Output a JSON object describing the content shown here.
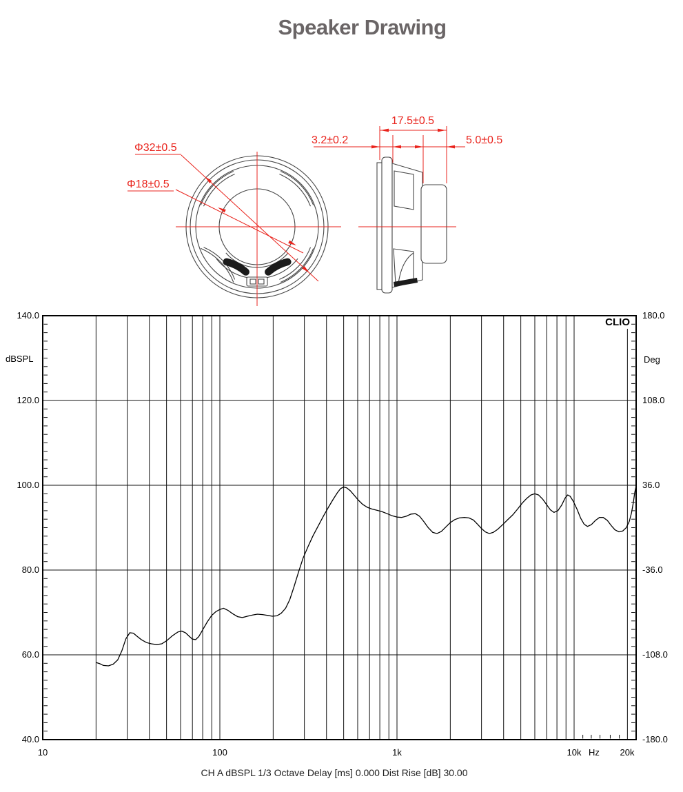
{
  "page_title": "Speaker Drawing",
  "colors": {
    "dimension_red": "#e9231c",
    "drawing_gray": "#474747",
    "curve_black": "#000000",
    "title_gray": "#6a6566"
  },
  "drawing": {
    "front_view": {
      "dim_outer": "Φ32±0.5",
      "dim_inner": "Φ18±0.5"
    },
    "side_view": {
      "dim_flange": "3.2±0.2",
      "dim_depth": "17.5±0.5",
      "dim_magnet": "5.0±0.5"
    }
  },
  "chart": {
    "brand": "CLIO",
    "y_left_unit": "dBSPL",
    "y_right_unit": "Deg",
    "x_unit": "Hz",
    "y_left_ticks": [
      "140.0",
      "120.0",
      "100.0",
      "80.0",
      "60.0",
      "40.0"
    ],
    "y_right_ticks": [
      "180.0",
      "108.0",
      "36.0",
      "-36.0",
      "-108.0",
      "-180.0"
    ],
    "x_tick_labels": [
      "10",
      "100",
      "1k",
      "10k",
      "20k"
    ],
    "caption": "CH A  dBSPL  1/3 Octave  Delay [ms] 0.000   Dist Rise [dB] 30.00"
  },
  "chart_data": {
    "type": "line",
    "title": "CLIO frequency response",
    "xlabel": "Hz",
    "ylabel": "dBSPL",
    "ylabel_right": "Deg",
    "x_scale": "log",
    "xlim": [
      10,
      22400
    ],
    "ylim": [
      40,
      140
    ],
    "ylim_right": [
      -180,
      180
    ],
    "grid": true,
    "x_gridlines": [
      20,
      30,
      40,
      50,
      60,
      70,
      80,
      90,
      100,
      200,
      300,
      400,
      500,
      600,
      700,
      800,
      900,
      1000,
      2000,
      3000,
      4000,
      5000,
      6000,
      7000,
      8000,
      9000,
      10000,
      20000
    ],
    "y_gridlines": [
      120,
      100,
      80,
      60
    ],
    "x_minor_ticks": [
      11200,
      12500,
      14000,
      16000,
      18000
    ],
    "y_minor_tick_step": 2,
    "series": [
      {
        "name": "CH A dBSPL",
        "points": [
          [
            20,
            58.2
          ],
          [
            21,
            57.9
          ],
          [
            22,
            57.5
          ],
          [
            23.5,
            57.4
          ],
          [
            25,
            57.8
          ],
          [
            26.5,
            58.8
          ],
          [
            28,
            61
          ],
          [
            29.5,
            63.8
          ],
          [
            31,
            65.2
          ],
          [
            32.5,
            65.1
          ],
          [
            34,
            64.4
          ],
          [
            36,
            63.6
          ],
          [
            38.5,
            62.9
          ],
          [
            41,
            62.6
          ],
          [
            44,
            62.4
          ],
          [
            47,
            62.6
          ],
          [
            50,
            63.3
          ],
          [
            54,
            64.5
          ],
          [
            58,
            65.4
          ],
          [
            61,
            65.6
          ],
          [
            64,
            65.2
          ],
          [
            67,
            64.4
          ],
          [
            70,
            63.7
          ],
          [
            73,
            63.6
          ],
          [
            76,
            64.3
          ],
          [
            80,
            65.9
          ],
          [
            85,
            67.8
          ],
          [
            90,
            69.3
          ],
          [
            95,
            70.2
          ],
          [
            100,
            70.7
          ],
          [
            105,
            71
          ],
          [
            111,
            70.5
          ],
          [
            118,
            69.7
          ],
          [
            126,
            69
          ],
          [
            134,
            68.8
          ],
          [
            143,
            69.1
          ],
          [
            153,
            69.4
          ],
          [
            163,
            69.6
          ],
          [
            174,
            69.5
          ],
          [
            186,
            69.3
          ],
          [
            198,
            69.1
          ],
          [
            210,
            69.2
          ],
          [
            222,
            69.8
          ],
          [
            235,
            71
          ],
          [
            248,
            73
          ],
          [
            262,
            76
          ],
          [
            278,
            79.5
          ],
          [
            295,
            82.8
          ],
          [
            315,
            85.6
          ],
          [
            335,
            88
          ],
          [
            360,
            90.5
          ],
          [
            385,
            92.8
          ],
          [
            410,
            94.8
          ],
          [
            435,
            96.6
          ],
          [
            460,
            98.2
          ],
          [
            480,
            99.2
          ],
          [
            500,
            99.6
          ],
          [
            520,
            99.4
          ],
          [
            545,
            98.7
          ],
          [
            575,
            97.6
          ],
          [
            605,
            96.5
          ],
          [
            640,
            95.5
          ],
          [
            680,
            94.8
          ],
          [
            720,
            94.4
          ],
          [
            770,
            94.1
          ],
          [
            820,
            93.8
          ],
          [
            880,
            93.3
          ],
          [
            940,
            92.8
          ],
          [
            1000,
            92.5
          ],
          [
            1060,
            92.4
          ],
          [
            1130,
            92.7
          ],
          [
            1200,
            93.2
          ],
          [
            1270,
            93.3
          ],
          [
            1340,
            92.7
          ],
          [
            1420,
            91.4
          ],
          [
            1500,
            90
          ],
          [
            1590,
            88.9
          ],
          [
            1680,
            88.6
          ],
          [
            1780,
            89.1
          ],
          [
            1890,
            90.2
          ],
          [
            2000,
            91.2
          ],
          [
            2120,
            91.9
          ],
          [
            2250,
            92.3
          ],
          [
            2400,
            92.4
          ],
          [
            2550,
            92.3
          ],
          [
            2700,
            91.8
          ],
          [
            2850,
            90.8
          ],
          [
            3000,
            89.8
          ],
          [
            3150,
            89
          ],
          [
            3320,
            88.6
          ],
          [
            3500,
            88.9
          ],
          [
            3700,
            89.6
          ],
          [
            3950,
            90.7
          ],
          [
            4200,
            91.8
          ],
          [
            4500,
            93
          ],
          [
            4800,
            94.4
          ],
          [
            5100,
            95.8
          ],
          [
            5400,
            96.9
          ],
          [
            5700,
            97.7
          ],
          [
            6000,
            98
          ],
          [
            6300,
            97.7
          ],
          [
            6650,
            96.7
          ],
          [
            7000,
            95.4
          ],
          [
            7350,
            94.2
          ],
          [
            7700,
            93.6
          ],
          [
            8100,
            94
          ],
          [
            8500,
            95.3
          ],
          [
            8900,
            97
          ],
          [
            9200,
            97.7
          ],
          [
            9500,
            97.4
          ],
          [
            9900,
            96.2
          ],
          [
            10400,
            94.3
          ],
          [
            10900,
            92.2
          ],
          [
            11400,
            90.8
          ],
          [
            11900,
            90.3
          ],
          [
            12500,
            90.7
          ],
          [
            13200,
            91.7
          ],
          [
            13900,
            92.4
          ],
          [
            14600,
            92.4
          ],
          [
            15400,
            91.7
          ],
          [
            16200,
            90.5
          ],
          [
            17000,
            89.5
          ],
          [
            17900,
            89
          ],
          [
            18800,
            89.2
          ],
          [
            19700,
            90
          ],
          [
            20500,
            91.5
          ],
          [
            21100,
            93.5
          ],
          [
            21600,
            96
          ],
          [
            22000,
            98.3
          ],
          [
            22350,
            99.7
          ]
        ]
      }
    ]
  }
}
